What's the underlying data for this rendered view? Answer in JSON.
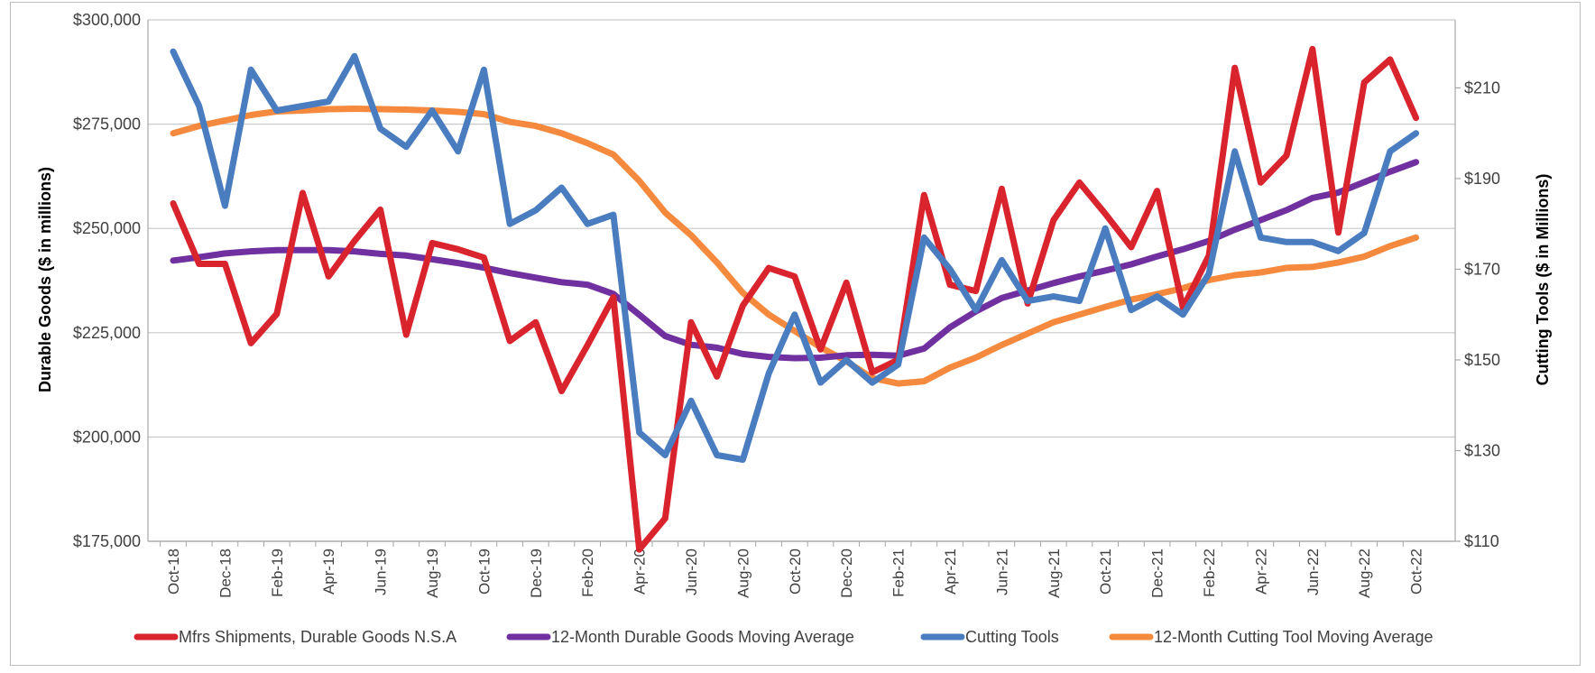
{
  "chart_data": {
    "type": "line",
    "title": "",
    "xlabel": "",
    "ylabel_left": "Durable Goods ($ in millions)",
    "ylabel_right": "Cutting Tools ($ in Millions)",
    "ylim_left": [
      175000,
      300000
    ],
    "ylim_right": [
      110,
      225
    ],
    "left_ticks": [
      175000,
      200000,
      225000,
      250000,
      275000,
      300000
    ],
    "left_tick_labels": [
      "$175,000",
      "$200,000",
      "$225,000",
      "$250,000",
      "$275,000",
      "$300,000"
    ],
    "right_ticks": [
      110,
      130,
      150,
      170,
      190,
      210
    ],
    "right_tick_labels": [
      "$110",
      "$130",
      "$150",
      "$170",
      "$190",
      "$210"
    ],
    "grid": true,
    "legend_position": "bottom",
    "categories": [
      "Oct-18",
      "Nov-18",
      "Dec-18",
      "Jan-19",
      "Feb-19",
      "Mar-19",
      "Apr-19",
      "May-19",
      "Jun-19",
      "Jul-19",
      "Aug-19",
      "Sep-19",
      "Oct-19",
      "Nov-19",
      "Dec-19",
      "Jan-20",
      "Feb-20",
      "Mar-20",
      "Apr-20",
      "May-20",
      "Jun-20",
      "Jul-20",
      "Aug-20",
      "Sep-20",
      "Oct-20",
      "Nov-20",
      "Dec-20",
      "Jan-21",
      "Feb-21",
      "Mar-21",
      "Apr-21",
      "May-21",
      "Jun-21",
      "Jul-21",
      "Aug-21",
      "Sep-21",
      "Oct-21",
      "Nov-21",
      "Dec-21",
      "Jan-22",
      "Feb-22",
      "Mar-22",
      "Apr-22",
      "May-22",
      "Jun-22",
      "Jul-22",
      "Aug-22",
      "Sep-22",
      "Oct-22"
    ],
    "tick_labels": [
      "Oct-18",
      "Dec-18",
      "Feb-19",
      "Apr-19",
      "Jun-19",
      "Aug-19",
      "Oct-19",
      "Dec-19",
      "Feb-20",
      "Apr-20",
      "Jun-20",
      "Aug-20",
      "Oct-20",
      "Dec-20",
      "Feb-21",
      "Apr-21",
      "Jun-21",
      "Aug-21",
      "Oct-21",
      "Dec-21",
      "Feb-22",
      "Apr-22",
      "Jun-22",
      "Aug-22",
      "Oct-22"
    ],
    "series": [
      {
        "name": "Mfrs Shipments, Durable Goods N.S.A",
        "color": "#d9232d",
        "axis": "left",
        "values": [
          256000,
          241500,
          241500,
          222500,
          229500,
          258500,
          238500,
          247000,
          254500,
          224500,
          246500,
          245000,
          243000,
          223000,
          227500,
          211000,
          222000,
          233500,
          173000,
          180500,
          227500,
          214500,
          231500,
          240500,
          238500,
          221000,
          237000,
          215500,
          218500,
          258000,
          236500,
          235000,
          259500,
          232000,
          252000,
          261000,
          253500,
          245500,
          259000,
          231000,
          243500,
          288500,
          261000,
          267500,
          293000,
          249000,
          285000,
          290500,
          276500
        ]
      },
      {
        "name": "12-Month Durable Goods Moving Average",
        "color": "#7030a0",
        "axis": "left",
        "values": [
          242300,
          243100,
          244000,
          244500,
          244800,
          244800,
          244800,
          244500,
          243900,
          243500,
          242600,
          241700,
          240600,
          239300,
          238200,
          237100,
          236500,
          234300,
          229300,
          224200,
          222100,
          221400,
          219900,
          219200,
          218900,
          219000,
          219600,
          219700,
          219500,
          221200,
          226300,
          230100,
          233300,
          235100,
          236900,
          238500,
          239900,
          241400,
          243300,
          245000,
          247000,
          249700,
          252000,
          254400,
          257300,
          258600,
          261100,
          263600,
          265900
        ]
      },
      {
        "name": "Cutting Tools",
        "color": "#4a7cc0",
        "axis": "right",
        "values": [
          218,
          206,
          184,
          214,
          205,
          206,
          207,
          217,
          201,
          197,
          205,
          196,
          214,
          180,
          183,
          188,
          180,
          182,
          134,
          129,
          141,
          129,
          128,
          147,
          160,
          145,
          150,
          145,
          149,
          177,
          170,
          161,
          172,
          163,
          164,
          163,
          179,
          161,
          164,
          160,
          169,
          196,
          177,
          176,
          176,
          174,
          178,
          196,
          200
        ]
      },
      {
        "name": "12-Month Cutting Tool Moving Average",
        "color": "#f58a3e",
        "axis": "right",
        "values": [
          200,
          201.6,
          202.8,
          204,
          204.8,
          205,
          205.3,
          205.4,
          205.3,
          205.2,
          205,
          204.7,
          204.2,
          202.5,
          201.6,
          200,
          197.8,
          195.3,
          189.5,
          182.5,
          177.5,
          171.5,
          164.8,
          160,
          156.4,
          152.8,
          149.7,
          146,
          144.8,
          145.3,
          148.3,
          150.5,
          153.3,
          155.8,
          158.3,
          160,
          161.7,
          163.3,
          164.5,
          165.8,
          167.6,
          168.7,
          169.3,
          170.3,
          170.5,
          171.5,
          172.8,
          175.1,
          177
        ]
      }
    ]
  }
}
